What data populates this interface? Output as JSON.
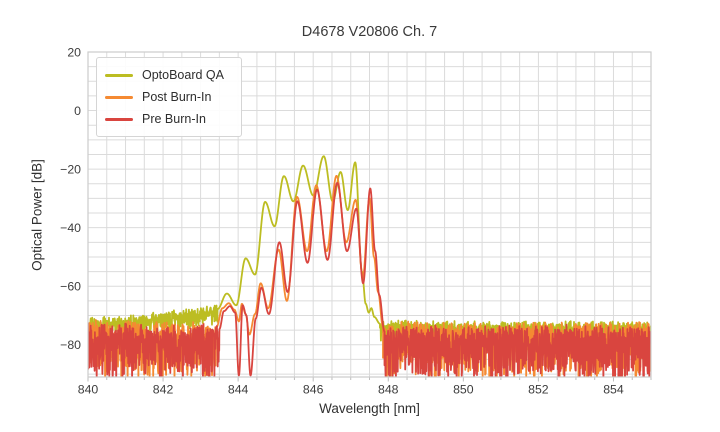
{
  "chart_data": {
    "type": "line",
    "title": "D4678 V20806 Ch. 7",
    "xlabel": "Wavelength [nm]",
    "ylabel": "Optical Power [dB]",
    "xlim": [
      840,
      855
    ],
    "ylim": [
      -91,
      20
    ],
    "xticks": [
      840,
      842,
      844,
      846,
      848,
      850,
      852,
      854
    ],
    "yticks": [
      20,
      0,
      -20,
      -40,
      -60,
      -80
    ],
    "x_minor_step": 0.5,
    "y_minor_step": 5,
    "grid": true,
    "legend_position": "upper left",
    "series": [
      {
        "name": "OptoBoard QA",
        "color": "#bcbd22",
        "segments": [
          {
            "type": "noise",
            "anchors": [
              [
                840,
                -72.0
              ],
              [
                841,
                -71.6
              ],
              [
                842,
                -70.0
              ],
              [
                842.7,
                -69.0
              ],
              [
                843.2,
                -68.3
              ],
              [
                843.45,
                -67.8
              ]
            ],
            "depth": 5.0,
            "jitter": 1.5
          },
          {
            "type": "curve",
            "points": [
              [
                843.45,
                -67.8
              ],
              [
                843.7,
                -62.5
              ],
              [
                843.95,
                -66.5
              ],
              [
                844.2,
                -50.5
              ],
              [
                844.45,
                -56.0
              ],
              [
                844.72,
                -31.2
              ],
              [
                844.97,
                -39.5
              ],
              [
                845.22,
                -22.4
              ],
              [
                845.47,
                -31.0
              ],
              [
                845.73,
                -18.8
              ],
              [
                846.0,
                -29.0
              ],
              [
                846.28,
                -15.6
              ],
              [
                846.52,
                -31.0
              ],
              [
                846.73,
                -21.0
              ],
              [
                846.92,
                -34.0
              ],
              [
                847.12,
                -17.7
              ],
              [
                847.3,
                -55.0
              ],
              [
                847.4,
                -66.0
              ],
              [
                847.48,
                -69.0
              ],
              [
                847.55,
                -67.5
              ],
              [
                847.63,
                -70.5
              ],
              [
                847.78,
                -72.8
              ]
            ]
          },
          {
            "type": "noise",
            "anchors": [
              [
                847.78,
                -72.8
              ],
              [
                849,
                -73.2
              ],
              [
                851,
                -73.6
              ],
              [
                853,
                -73.3
              ],
              [
                855,
                -73.5
              ]
            ],
            "depth": 5.5,
            "jitter": 1.5
          }
        ]
      },
      {
        "name": "Post Burn-In",
        "color": "#f58a32",
        "segments": [
          {
            "type": "noise",
            "anchors": [
              [
                840,
                -74.2
              ],
              [
                841.5,
                -74.8
              ],
              [
                843,
                -74.5
              ],
              [
                843.42,
                -74.0
              ]
            ],
            "depth": 16,
            "jitter": 2.8
          },
          {
            "type": "curve",
            "points": [
              [
                843.42,
                -74.0
              ],
              [
                843.58,
                -67.5
              ],
              [
                843.75,
                -65.8
              ],
              [
                843.9,
                -68.0
              ],
              [
                844.02,
                -72.0
              ],
              [
                844.1,
                -66.0
              ],
              [
                844.2,
                -69.5
              ],
              [
                844.3,
                -76.5
              ],
              [
                844.45,
                -69.5
              ],
              [
                844.6,
                -59.0
              ],
              [
                844.8,
                -67.5
              ],
              [
                845.08,
                -47.5
              ],
              [
                845.3,
                -65.0
              ],
              [
                845.57,
                -29.5
              ],
              [
                845.84,
                -48.0
              ],
              [
                846.08,
                -25.5
              ],
              [
                846.36,
                -48.0
              ],
              [
                846.62,
                -22.3
              ],
              [
                846.88,
                -45.0
              ],
              [
                847.13,
                -30.5
              ],
              [
                847.32,
                -57.0
              ],
              [
                847.5,
                -30.0
              ],
              [
                847.62,
                -50.0
              ],
              [
                847.73,
                -62.0
              ],
              [
                847.86,
                -74.0
              ]
            ]
          },
          {
            "type": "noise",
            "anchors": [
              [
                847.86,
                -74.0
              ],
              [
                849,
                -74.6
              ],
              [
                852,
                -75.0
              ],
              [
                855,
                -74.6
              ]
            ],
            "depth": 16,
            "jitter": 2.8
          }
        ]
      },
      {
        "name": "Pre Burn-In",
        "color": "#d9453f",
        "segments": [
          {
            "type": "noise",
            "anchors": [
              [
                840,
                -74.8
              ],
              [
                841.5,
                -75.4
              ],
              [
                843,
                -75.0
              ],
              [
                843.5,
                -74.6
              ]
            ],
            "depth": 16,
            "jitter": 2.5
          },
          {
            "type": "curve",
            "points": [
              [
                843.5,
                -74.6
              ],
              [
                843.62,
                -68.5
              ],
              [
                843.78,
                -66.8
              ],
              [
                843.92,
                -69.0
              ],
              [
                844.02,
                -90.5
              ],
              [
                844.12,
                -66.5
              ],
              [
                844.22,
                -70.0
              ],
              [
                844.33,
                -90.5
              ],
              [
                844.47,
                -71.0
              ],
              [
                844.62,
                -60.5
              ],
              [
                844.82,
                -69.5
              ],
              [
                845.1,
                -45.0
              ],
              [
                845.32,
                -62.0
              ],
              [
                845.58,
                -31.0
              ],
              [
                845.85,
                -52.0
              ],
              [
                846.1,
                -27.0
              ],
              [
                846.38,
                -51.0
              ],
              [
                846.64,
                -24.7
              ],
              [
                846.9,
                -48.0
              ],
              [
                847.15,
                -33.5
              ],
              [
                847.33,
                -59.0
              ],
              [
                847.52,
                -26.6
              ],
              [
                847.65,
                -48.0
              ],
              [
                847.76,
                -63.0
              ],
              [
                847.9,
                -75.5
              ]
            ]
          },
          {
            "type": "noise",
            "anchors": [
              [
                847.9,
                -75.5
              ],
              [
                850,
                -75.8
              ],
              [
                855,
                -75.4
              ]
            ],
            "depth": 16,
            "jitter": 2.5
          }
        ]
      }
    ]
  }
}
